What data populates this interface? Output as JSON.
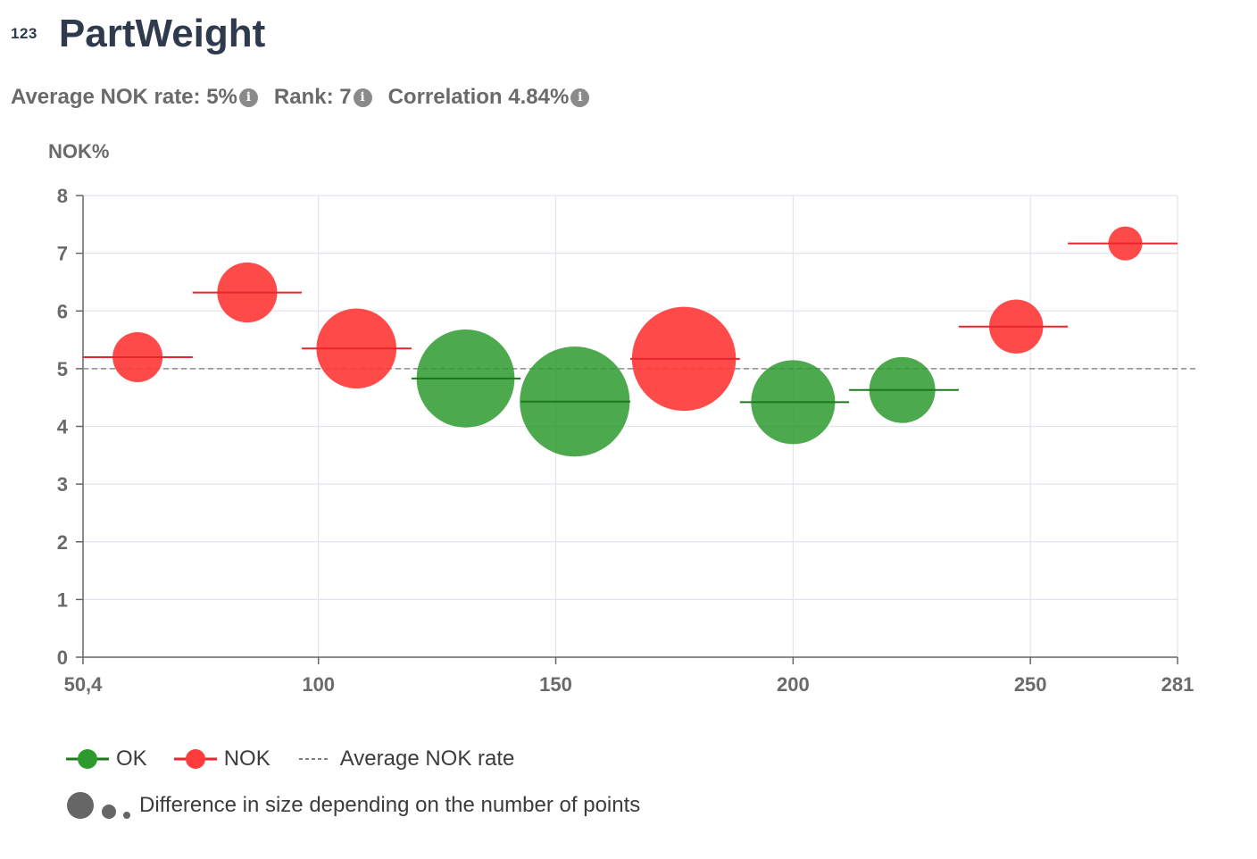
{
  "header": {
    "type_badge": "123",
    "title": "PartWeight"
  },
  "stats": {
    "average_nok": "Average NOK rate: 5%",
    "rank": "Rank: 7",
    "correlation": "Correlation 4.84%"
  },
  "colors": {
    "ok": "#2e9a2e",
    "ok_line": "#1a7a1a",
    "nok": "#ff3b3b",
    "nok_line": "#e8262b",
    "grid": "#e1e4ec",
    "axis": "#666666"
  },
  "chart_data": {
    "type": "scatter",
    "title": "",
    "xlabel": "",
    "ylabel": "NOK%",
    "xlim": [
      50.4,
      281
    ],
    "ylim": [
      0,
      8
    ],
    "x_ticks": [
      50.4,
      100,
      150,
      200,
      250,
      281
    ],
    "x_tick_labels": [
      "50,4",
      "100",
      "150",
      "200",
      "250",
      "281"
    ],
    "y_ticks": [
      0,
      1,
      2,
      3,
      4,
      5,
      6,
      7,
      8
    ],
    "y_tick_labels": [
      "0",
      "1",
      "2",
      "3",
      "4",
      "5",
      "6",
      "7",
      "8"
    ],
    "grid": true,
    "average_nok_rate": 5,
    "points": [
      {
        "x": 61.9,
        "y": 5.2,
        "bin": [
          50.4,
          73.5
        ],
        "status": "NOK",
        "relative_size": 0.25
      },
      {
        "x": 85,
        "y": 6.32,
        "bin": [
          73.5,
          96.5
        ],
        "status": "NOK",
        "relative_size": 0.3
      },
      {
        "x": 108,
        "y": 5.35,
        "bin": [
          96.5,
          119.6
        ],
        "status": "NOK",
        "relative_size": 0.4
      },
      {
        "x": 131,
        "y": 4.83,
        "bin": [
          119.6,
          142.6
        ],
        "status": "OK",
        "relative_size": 0.49
      },
      {
        "x": 154,
        "y": 4.43,
        "bin": [
          142.6,
          165.7
        ],
        "status": "OK",
        "relative_size": 0.55
      },
      {
        "x": 177,
        "y": 5.17,
        "bin": [
          165.7,
          188.8
        ],
        "status": "NOK",
        "relative_size": 0.52
      },
      {
        "x": 200,
        "y": 4.42,
        "bin": [
          188.8,
          211.8
        ],
        "status": "OK",
        "relative_size": 0.42
      },
      {
        "x": 223,
        "y": 4.63,
        "bin": [
          211.8,
          234.9
        ],
        "status": "OK",
        "relative_size": 0.33
      },
      {
        "x": 247,
        "y": 5.73,
        "bin": [
          234.9,
          257.9
        ],
        "status": "NOK",
        "relative_size": 0.27
      },
      {
        "x": 270,
        "y": 7.17,
        "bin": [
          257.9,
          281
        ],
        "status": "NOK",
        "relative_size": 0.17
      }
    ]
  },
  "legend": {
    "ok": "OK",
    "nok": "NOK",
    "avg": "Average NOK rate",
    "size_note": "Difference in size depending on the number of points"
  }
}
